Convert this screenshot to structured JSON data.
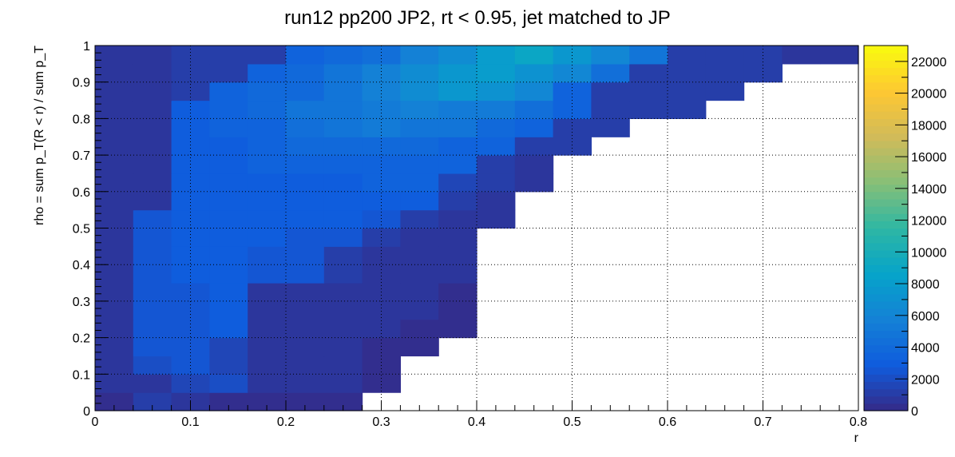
{
  "chart_data": {
    "type": "heatmap",
    "title": "run12 pp200 JP2, rt < 0.95, jet matched to JP",
    "xlabel": "r",
    "ylabel": "rho = sum p_T(R < r) / sum p_T",
    "xlim": [
      0,
      0.8
    ],
    "ylim": [
      0,
      1
    ],
    "x_ticks": [
      "0",
      "0.1",
      "0.2",
      "0.3",
      "0.4",
      "0.5",
      "0.6",
      "0.7",
      "0.8"
    ],
    "y_ticks": [
      "0",
      "0.1",
      "0.2",
      "0.3",
      "0.4",
      "0.5",
      "0.6",
      "0.7",
      "0.8",
      "0.9",
      "1"
    ],
    "x_bin_width": 0.04,
    "y_bin_width": 0.05,
    "z_range": [
      0,
      23000
    ],
    "z_ticks": [
      "0",
      "2000",
      "4000",
      "6000",
      "8000",
      "10000",
      "12000",
      "14000",
      "16000",
      "18000",
      "20000",
      "22000"
    ],
    "grid": true,
    "colormap": [
      "#352a87",
      "#0f5cdd",
      "#1481d6",
      "#06a4ca",
      "#2eb7a4",
      "#87bf77",
      "#d1bb59",
      "#fec832",
      "#f9fb0e"
    ],
    "bins": [
      [
        400,
        1000,
        500,
        200,
        200,
        150,
        150,
        0,
        0,
        0,
        0,
        0,
        0,
        0,
        0,
        0,
        0,
        0,
        0,
        0
      ],
      [
        800,
        600,
        1500,
        2200,
        800,
        800,
        600,
        100,
        0,
        0,
        0,
        0,
        0,
        0,
        0,
        0,
        0,
        0,
        0,
        0
      ],
      [
        800,
        2000,
        2500,
        1500,
        800,
        800,
        600,
        100,
        0,
        0,
        0,
        0,
        0,
        0,
        0,
        0,
        0,
        0,
        0,
        0
      ],
      [
        800,
        2300,
        2600,
        1500,
        900,
        800,
        600,
        400,
        200,
        0,
        0,
        0,
        0,
        0,
        0,
        0,
        0,
        0,
        0,
        0
      ],
      [
        800,
        2300,
        2700,
        2800,
        800,
        800,
        800,
        700,
        400,
        200,
        0,
        0,
        0,
        0,
        0,
        0,
        0,
        0,
        0,
        0
      ],
      [
        800,
        2300,
        2700,
        2800,
        900,
        800,
        800,
        800,
        600,
        300,
        0,
        0,
        0,
        0,
        0,
        0,
        0,
        0,
        0,
        0
      ],
      [
        800,
        2300,
        2700,
        2800,
        900,
        900,
        900,
        900,
        600,
        400,
        0,
        0,
        0,
        0,
        0,
        0,
        0,
        0,
        0,
        0
      ],
      [
        800,
        2300,
        2800,
        2900,
        2600,
        2300,
        1200,
        900,
        700,
        500,
        0,
        0,
        0,
        0,
        0,
        0,
        0,
        0,
        0,
        0
      ],
      [
        800,
        2300,
        2800,
        2900,
        2700,
        2400,
        1200,
        900,
        800,
        500,
        0,
        0,
        0,
        0,
        0,
        0,
        0,
        0,
        0,
        0
      ],
      [
        800,
        2300,
        2900,
        3000,
        2800,
        2500,
        2300,
        1200,
        900,
        600,
        0,
        0,
        0,
        0,
        0,
        0,
        0,
        0,
        0,
        0
      ],
      [
        800,
        2300,
        2900,
        3000,
        3000,
        2800,
        2900,
        2600,
        1200,
        900,
        600,
        0,
        0,
        0,
        0,
        0,
        0,
        0,
        0,
        0
      ],
      [
        800,
        900,
        2900,
        3100,
        3100,
        3000,
        3000,
        3100,
        3000,
        1200,
        900,
        0,
        0,
        0,
        0,
        0,
        0,
        0,
        0,
        0
      ],
      [
        800,
        900,
        2900,
        3100,
        3200,
        3200,
        3200,
        3300,
        3300,
        1500,
        1000,
        700,
        0,
        0,
        0,
        0,
        0,
        0,
        0,
        0
      ],
      [
        800,
        900,
        2900,
        3200,
        3500,
        3600,
        3600,
        3600,
        3500,
        3300,
        1100,
        900,
        0,
        0,
        0,
        0,
        0,
        0,
        0,
        0
      ],
      [
        800,
        900,
        3000,
        3200,
        3500,
        3800,
        3900,
        4100,
        3800,
        3500,
        3300,
        1100,
        1000,
        0,
        0,
        0,
        0,
        0,
        0,
        0
      ],
      [
        800,
        900,
        3000,
        3300,
        3600,
        4400,
        4800,
        5100,
        4900,
        4700,
        3900,
        3300,
        1100,
        1000,
        0,
        0,
        0,
        0,
        0,
        0
      ],
      [
        800,
        900,
        3100,
        3400,
        4000,
        4800,
        5000,
        5500,
        5600,
        5500,
        5200,
        4200,
        3500,
        1200,
        1100,
        1000,
        0,
        0,
        0,
        0
      ],
      [
        800,
        900,
        1000,
        3500,
        4100,
        4100,
        4600,
        5600,
        6600,
        7600,
        7300,
        6000,
        3600,
        1300,
        1200,
        1100,
        1000,
        0,
        0,
        0
      ],
      [
        800,
        900,
        1000,
        1100,
        3600,
        4000,
        4600,
        5600,
        6600,
        7600,
        8100,
        7300,
        6100,
        4400,
        1200,
        1100,
        1000,
        1000,
        0,
        0
      ],
      [
        800,
        900,
        1000,
        1100,
        1200,
        3600,
        4000,
        4400,
        5600,
        6600,
        7900,
        8800,
        7800,
        6400,
        4600,
        1100,
        1000,
        1000,
        900,
        900
      ]
    ]
  }
}
